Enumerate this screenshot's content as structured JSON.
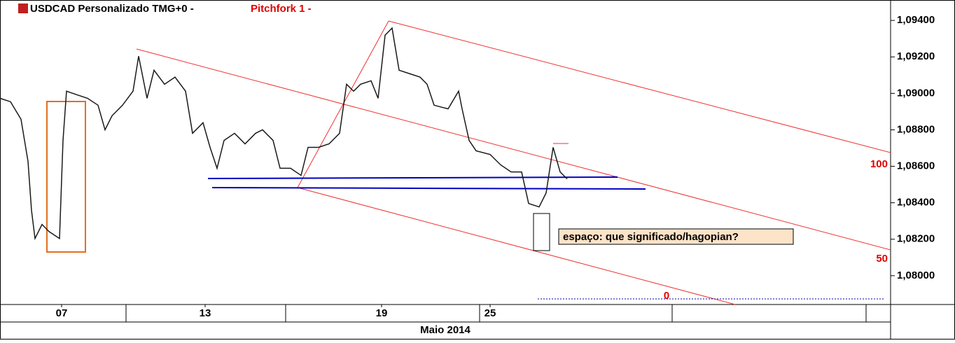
{
  "chart_data": {
    "type": "line",
    "title": "USDCAD Personalizado TMG+0 -",
    "subtitle": "Pitchfork 1 -",
    "annotations": [
      "espaço: que significado/hagopian?",
      "100",
      "50",
      "0"
    ],
    "x_axis_label": "Maio 2014",
    "color": "#1a1a1a",
    "xlim": [
      0,
      254.4
    ],
    "xticks": [
      {
        "value": 17.6,
        "label": "07"
      },
      {
        "value": 58.6,
        "label": "13"
      },
      {
        "value": 109,
        "label": "19"
      },
      {
        "value": 140,
        "label": "25"
      }
    ],
    "ylim": [
      1.07842,
      1.09512
    ],
    "yticks": [
      {
        "value": 1.094,
        "label": "1,09400"
      },
      {
        "value": 1.092,
        "label": "1,09200"
      },
      {
        "value": 1.09,
        "label": "1,09000"
      },
      {
        "value": 1.088,
        "label": "1,08800"
      },
      {
        "value": 1.086,
        "label": "1,08600"
      },
      {
        "value": 1.084,
        "label": "1,08400"
      },
      {
        "value": 1.082,
        "label": "1,08200"
      },
      {
        "value": 1.08,
        "label": "1,08000"
      }
    ],
    "x": [
      0,
      3,
      6,
      8,
      9,
      10,
      12,
      14,
      17,
      18,
      19,
      22,
      25,
      28,
      30,
      32,
      35,
      38,
      39.6,
      42,
      44,
      47,
      50,
      53,
      55,
      58,
      60,
      62,
      64,
      67,
      70,
      73,
      75,
      78,
      80,
      83,
      86,
      88,
      91,
      94,
      97,
      99,
      101,
      103,
      106,
      108,
      110,
      112,
      114,
      117,
      120,
      122,
      124,
      128,
      131,
      132,
      134,
      136,
      140,
      143,
      146,
      149,
      151,
      154,
      156,
      158,
      160,
      162
    ],
    "values": [
      1.08973,
      1.08954,
      1.08858,
      1.08627,
      1.08358,
      1.08204,
      1.08281,
      1.08242,
      1.08204,
      1.08742,
      1.09012,
      1.08992,
      1.08973,
      1.08935,
      1.088,
      1.08877,
      1.08935,
      1.09012,
      1.09204,
      1.08973,
      1.09127,
      1.0905,
      1.09089,
      1.09012,
      1.08781,
      1.08839,
      1.08704,
      1.08589,
      1.08742,
      1.08781,
      1.08723,
      1.08781,
      1.088,
      1.08742,
      1.08589,
      1.08589,
      1.0855,
      1.08704,
      1.08704,
      1.08723,
      1.08781,
      1.0905,
      1.09012,
      1.0905,
      1.09069,
      1.08973,
      1.09319,
      1.09358,
      1.09127,
      1.09108,
      1.09089,
      1.0905,
      1.08935,
      1.08915,
      1.09012,
      1.08915,
      1.08742,
      1.08685,
      1.08665,
      1.08608,
      1.08569,
      1.08569,
      1.08396,
      1.08377,
      1.08454,
      1.08704,
      1.08569,
      1.08531
    ]
  }
}
